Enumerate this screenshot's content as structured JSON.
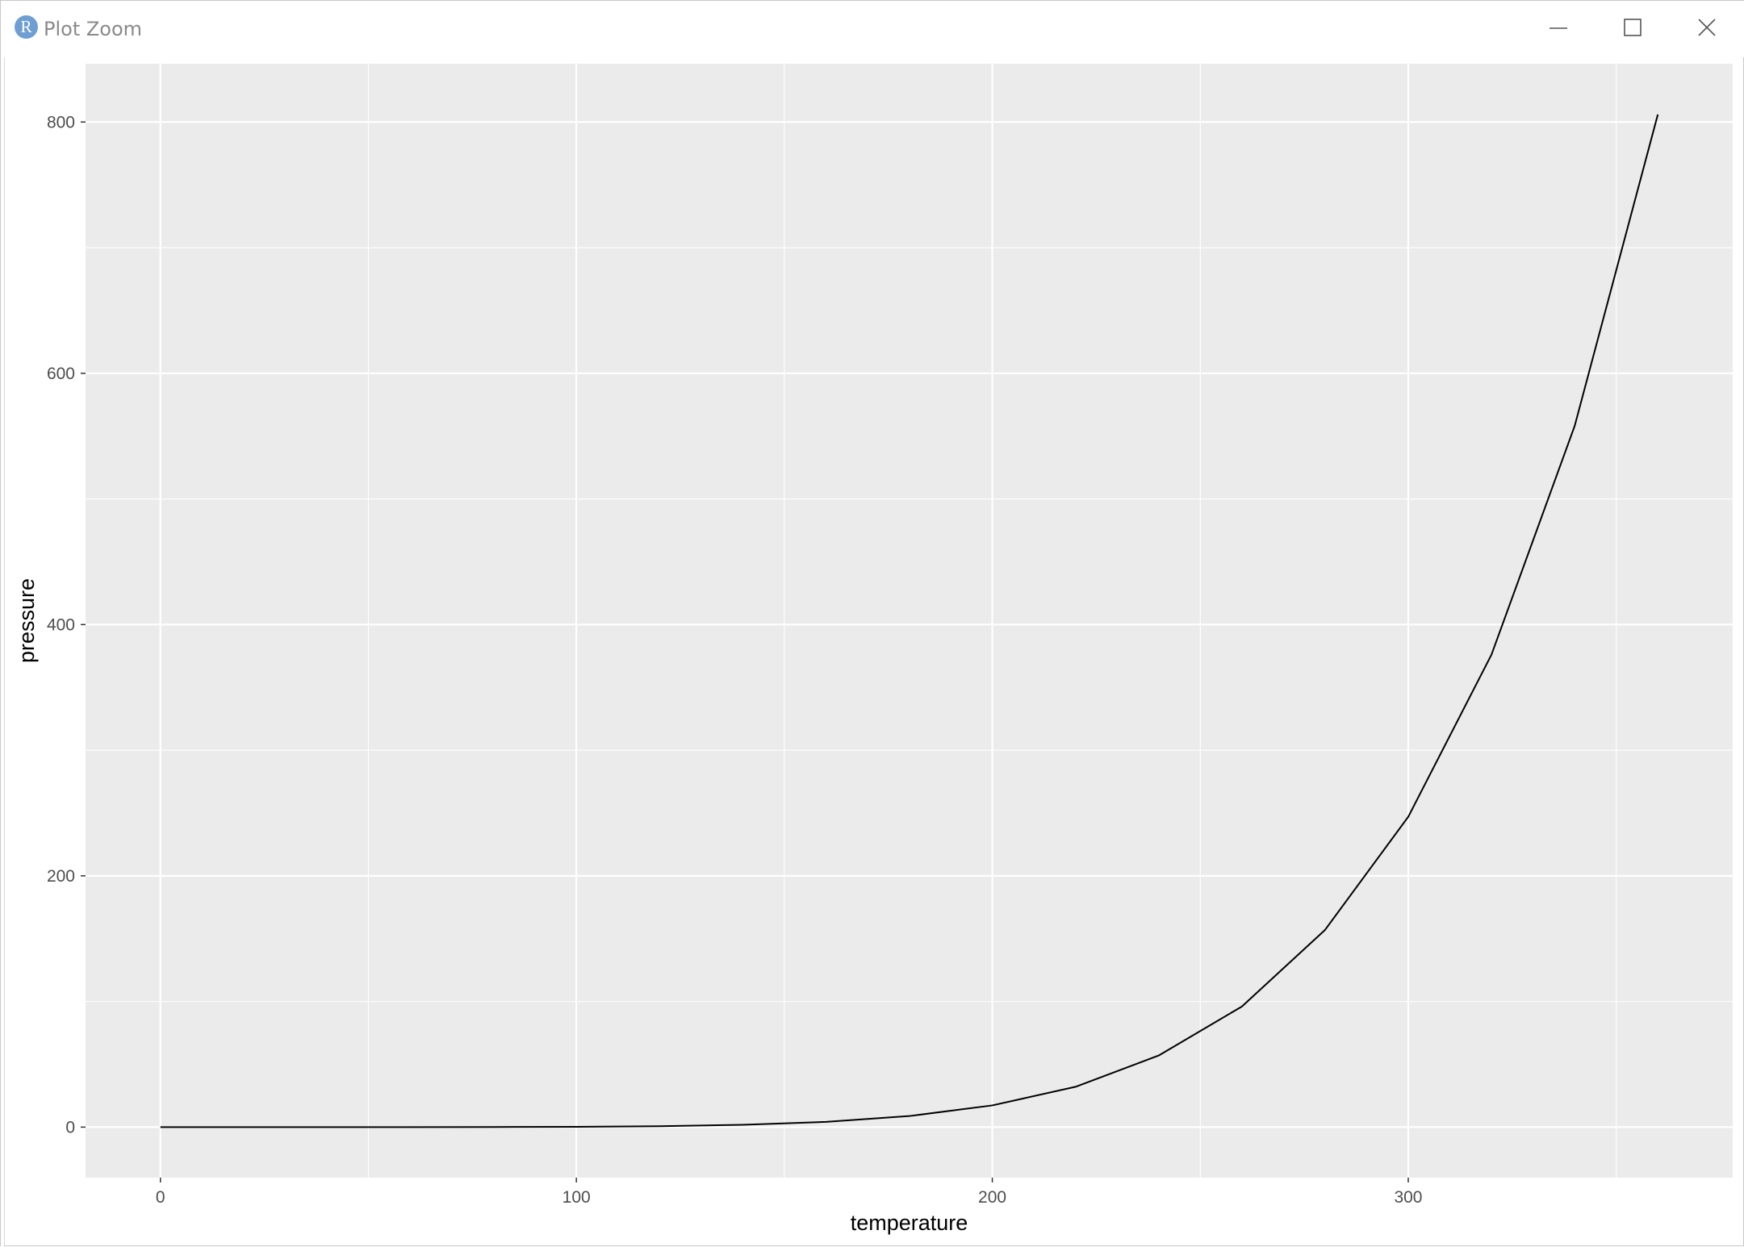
{
  "window": {
    "title": "Plot Zoom",
    "app_icon_letter": "R",
    "controls": {
      "minimize": "minimize-icon",
      "maximize": "maximize-icon",
      "close": "close-icon"
    }
  },
  "colors": {
    "panel_background": "#ebebeb",
    "grid_line": "#ffffff",
    "data_line": "#000000",
    "tick_text": "#4d4d4d",
    "axis_title": "#000000",
    "app_icon": "#6f9fd2"
  },
  "chart_data": {
    "type": "line",
    "xlabel": "temperature",
    "ylabel": "pressure",
    "xlim": [
      -18,
      378
    ],
    "ylim": [
      -40.2,
      846.4
    ],
    "x_major_ticks": [
      0,
      100,
      200,
      300
    ],
    "x_minor_ticks": [
      50,
      150,
      250,
      350
    ],
    "y_major_ticks": [
      0,
      200,
      400,
      600,
      800
    ],
    "y_minor_ticks": [
      100,
      300,
      500,
      700
    ],
    "x": [
      0,
      20,
      40,
      60,
      80,
      100,
      120,
      140,
      160,
      180,
      200,
      220,
      240,
      260,
      280,
      300,
      320,
      340,
      360
    ],
    "y": [
      0.0002,
      0.0012,
      0.006,
      0.03,
      0.09,
      0.27,
      0.75,
      1.85,
      4.2,
      8.8,
      17.3,
      32.1,
      57.0,
      96.0,
      157.0,
      247.0,
      376.0,
      558.0,
      806.0
    ],
    "grid": true,
    "legend": "none"
  }
}
